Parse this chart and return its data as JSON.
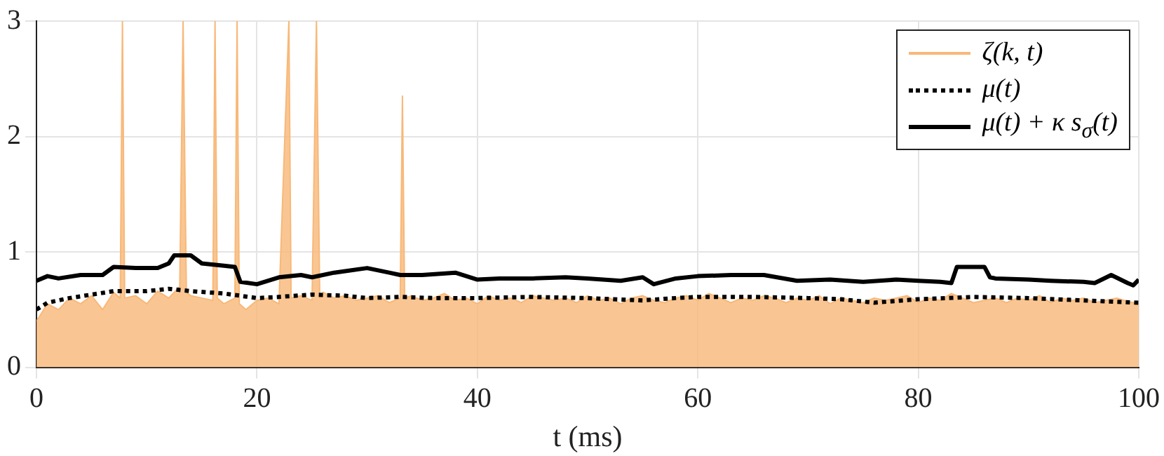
{
  "chart_data": {
    "type": "line",
    "xlabel": "t (ms)",
    "xlim": [
      0,
      100
    ],
    "ylim": [
      0,
      3
    ],
    "xticks": [
      0,
      20,
      40,
      60,
      80,
      100
    ],
    "yticks": [
      0,
      1,
      2,
      3
    ],
    "grid": true,
    "legend": "top right",
    "marker": "none",
    "series": [
      {
        "name": "ζ(k, t)",
        "type": "area",
        "color": "#f8b878",
        "x": [
          0,
          1,
          2,
          3,
          4,
          5,
          6,
          7,
          7.6,
          7.8,
          8,
          9,
          10,
          11,
          12,
          13,
          13.3,
          13.6,
          14,
          15,
          16,
          16.2,
          16.4,
          17,
          18,
          18.2,
          18.4,
          19,
          20,
          21,
          22,
          22.9,
          23.1,
          24,
          25,
          25.4,
          25.7,
          26,
          27,
          28,
          29,
          30,
          31,
          32,
          33,
          33.2,
          33.4,
          34,
          35,
          36,
          37,
          38,
          39,
          40,
          41,
          42,
          43,
          44,
          45,
          46,
          47,
          48,
          49,
          50,
          51,
          52,
          53,
          54,
          55,
          56,
          57,
          58,
          59,
          60,
          61,
          62,
          63,
          64,
          65,
          66,
          67,
          68,
          69,
          70,
          71,
          72,
          73,
          74,
          75,
          76,
          77,
          78,
          79,
          80,
          81,
          82,
          83,
          84,
          85,
          86,
          87,
          88,
          89,
          90,
          91,
          92,
          93,
          94,
          95,
          96,
          97,
          98,
          99,
          100
        ],
        "values": [
          0.4,
          0.55,
          0.5,
          0.6,
          0.55,
          0.62,
          0.5,
          0.65,
          0.6,
          3,
          0.6,
          0.62,
          0.55,
          0.66,
          0.6,
          0.7,
          3,
          0.65,
          0.62,
          0.6,
          0.58,
          3,
          0.6,
          0.55,
          0.6,
          3,
          0.55,
          0.5,
          0.58,
          0.6,
          0.55,
          3,
          0.6,
          0.62,
          0.58,
          3,
          0.6,
          0.65,
          0.6,
          0.62,
          0.58,
          0.6,
          0.62,
          0.56,
          0.6,
          2.35,
          0.6,
          0.62,
          0.58,
          0.6,
          0.64,
          0.58,
          0.6,
          0.55,
          0.62,
          0.58,
          0.6,
          0.56,
          0.62,
          0.6,
          0.58,
          0.6,
          0.56,
          0.62,
          0.58,
          0.6,
          0.55,
          0.6,
          0.62,
          0.58,
          0.56,
          0.6,
          0.62,
          0.58,
          0.64,
          0.6,
          0.56,
          0.6,
          0.58,
          0.62,
          0.6,
          0.56,
          0.6,
          0.58,
          0.62,
          0.55,
          0.6,
          0.58,
          0.56,
          0.6,
          0.58,
          0.6,
          0.62,
          0.56,
          0.6,
          0.58,
          0.64,
          0.6,
          0.56,
          0.58,
          0.6,
          0.56,
          0.6,
          0.58,
          0.62,
          0.56,
          0.6,
          0.58,
          0.6,
          0.56,
          0.58,
          0.6,
          0.57,
          0.55
        ]
      },
      {
        "name": "μ(t)",
        "color": "#000000",
        "line_style": "dotted",
        "x": [
          0,
          1,
          3,
          5,
          7,
          10,
          12,
          14,
          17,
          20,
          22,
          25,
          28,
          30,
          33,
          36,
          40,
          45,
          50,
          55,
          58,
          60,
          65,
          70,
          73,
          76,
          80,
          85,
          90,
          95,
          100
        ],
        "values": [
          0.5,
          0.56,
          0.6,
          0.63,
          0.66,
          0.66,
          0.68,
          0.66,
          0.64,
          0.6,
          0.61,
          0.63,
          0.62,
          0.6,
          0.61,
          0.6,
          0.6,
          0.61,
          0.6,
          0.58,
          0.6,
          0.61,
          0.61,
          0.6,
          0.59,
          0.56,
          0.59,
          0.61,
          0.6,
          0.58,
          0.56
        ]
      },
      {
        "name": "μ(t) + κ s$_{σ}$(t)",
        "color": "#000000",
        "line_style": "solid",
        "x": [
          0,
          1,
          2,
          4,
          6,
          7,
          9,
          11,
          12,
          12.5,
          14,
          15,
          17,
          18,
          18.5,
          20,
          22,
          24,
          25,
          27,
          30,
          32,
          33,
          35,
          38,
          40,
          42,
          45,
          48,
          50,
          53,
          55,
          56,
          58,
          60,
          63,
          66,
          69,
          72,
          75,
          78,
          80,
          82,
          83,
          83.5,
          86,
          86.5,
          87,
          90,
          92,
          95,
          96,
          97.5,
          99,
          99.5,
          100
        ],
        "values": [
          0.75,
          0.79,
          0.77,
          0.8,
          0.8,
          0.87,
          0.86,
          0.86,
          0.9,
          0.97,
          0.97,
          0.9,
          0.88,
          0.87,
          0.74,
          0.72,
          0.78,
          0.8,
          0.78,
          0.82,
          0.86,
          0.82,
          0.8,
          0.8,
          0.82,
          0.76,
          0.77,
          0.77,
          0.78,
          0.77,
          0.75,
          0.78,
          0.72,
          0.77,
          0.79,
          0.8,
          0.8,
          0.75,
          0.76,
          0.74,
          0.76,
          0.75,
          0.74,
          0.73,
          0.87,
          0.87,
          0.78,
          0.77,
          0.76,
          0.75,
          0.74,
          0.73,
          0.8,
          0.73,
          0.71,
          0.76
        ]
      }
    ]
  }
}
